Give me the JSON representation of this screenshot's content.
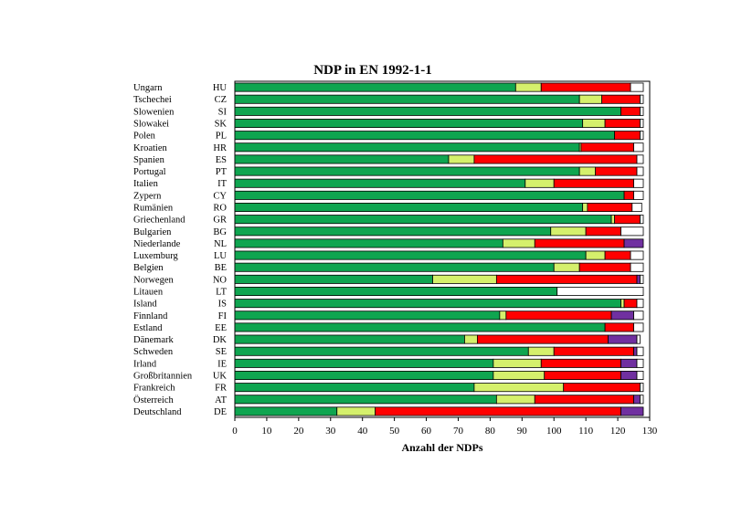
{
  "chart_data": {
    "type": "bar",
    "orientation": "horizontal",
    "stacked": true,
    "title": "NDP in EN 1992-1-1",
    "xlabel": "Anzahl der NDPs",
    "ylabel": "",
    "xlim": [
      0,
      130
    ],
    "xticks": [
      0,
      10,
      20,
      30,
      40,
      50,
      60,
      70,
      80,
      90,
      100,
      110,
      120,
      130
    ],
    "grid": false,
    "legend": "none",
    "categories": [
      "Ungarn",
      "Tschechei",
      "Slowenien",
      "Slowakei",
      "Polen",
      "Kroatien",
      "Spanien",
      "Portugal",
      "Italien",
      "Zypern",
      "Rumänien",
      "Griechenland",
      "Bulgarien",
      "Niederlande",
      "Luxemburg",
      "Belgien",
      "Norwegen",
      "Litauen",
      "Island",
      "Finnland",
      "Estland",
      "Dänemark",
      "Schweden",
      "Irland",
      "Großbritannien",
      "Frankreich",
      "Österreich",
      "Deutschland"
    ],
    "codes": [
      "HU",
      "CZ",
      "SI",
      "SK",
      "PL",
      "HR",
      "ES",
      "PT",
      "IT",
      "CY",
      "RO",
      "GR",
      "BG",
      "NL",
      "LU",
      "BE",
      "NO",
      "LT",
      "IS",
      "FI",
      "EE",
      "DK",
      "SE",
      "IE",
      "UK",
      "FR",
      "AT",
      "DE"
    ],
    "series": [
      {
        "color": "#0fa550",
        "values": [
          88,
          108,
          121,
          109,
          119,
          108,
          67,
          108,
          91,
          122,
          109,
          118,
          99,
          84,
          110,
          100,
          62,
          101,
          121,
          83,
          116,
          72,
          92,
          81,
          81,
          75,
          82,
          32
        ]
      },
      {
        "color": "#d5f06c",
        "values": [
          8,
          7,
          0,
          7,
          0,
          0.5,
          8,
          5,
          9,
          0,
          1.5,
          1,
          11,
          10,
          6,
          8,
          20,
          0,
          1,
          2,
          0,
          4,
          8,
          15,
          16,
          28,
          12,
          12
        ]
      },
      {
        "color": "#ff0000",
        "values": [
          28,
          12,
          6,
          11,
          8,
          16.5,
          51,
          13,
          25,
          3,
          14,
          8,
          11,
          28,
          8,
          16,
          44,
          0,
          4,
          33,
          9,
          41,
          25,
          25,
          24,
          24,
          31,
          77
        ]
      },
      {
        "color": "#7030a0",
        "values": [
          0,
          0,
          0,
          0,
          0,
          0,
          0,
          0,
          0,
          0,
          0,
          0,
          0,
          6,
          0,
          0,
          1,
          0,
          0,
          7,
          0,
          9,
          1,
          5,
          5,
          0,
          2,
          7
        ]
      },
      {
        "color": "#ffffff",
        "values": [
          4,
          1,
          1,
          1,
          1,
          3,
          2,
          2,
          3,
          3,
          3,
          1,
          7,
          0,
          4,
          4,
          1,
          27,
          2,
          3,
          3,
          1,
          2,
          2,
          2,
          1,
          1,
          0
        ]
      }
    ]
  }
}
